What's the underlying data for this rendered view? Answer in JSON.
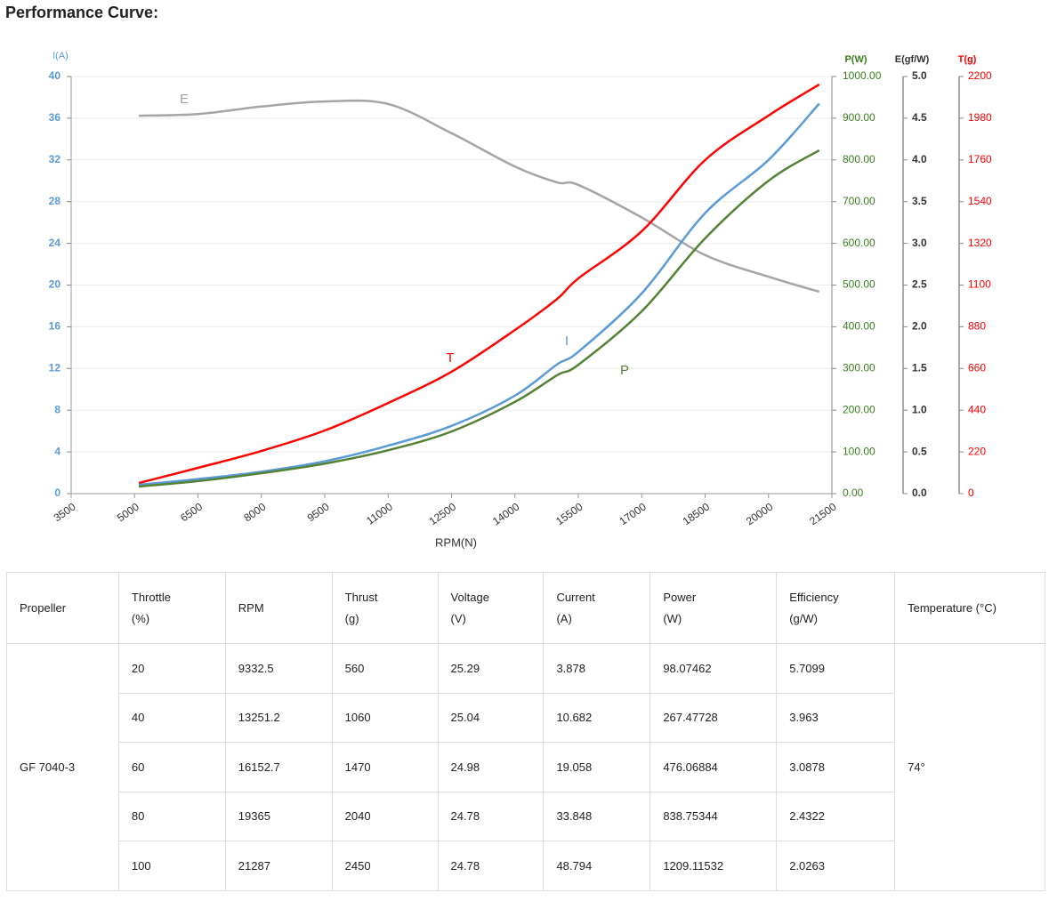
{
  "heading": "Performance Curve:",
  "chart_data": {
    "type": "line",
    "xlabel": "RPM(N)",
    "xlim": [
      3500,
      21500
    ],
    "xticks": [
      3500,
      5000,
      6500,
      8000,
      9500,
      11000,
      12500,
      14000,
      15500,
      17000,
      18500,
      20000,
      21500
    ],
    "ylabel": "I(A)",
    "ycolor": "#5b9bd5",
    "ylim": [
      0,
      40
    ],
    "yticks": [
      0,
      4,
      8,
      12,
      16,
      20,
      24,
      28,
      32,
      36,
      40
    ],
    "y2label": "P(W)",
    "y2color": "#3a7d1e",
    "y2lim": [
      0,
      1000
    ],
    "y2ticks": [
      {
        "value": 0,
        "label": "0.00"
      },
      {
        "value": 100,
        "label": "100.00"
      },
      {
        "value": 200,
        "label": "200.00"
      },
      {
        "value": 300,
        "label": "300.00"
      },
      {
        "value": 400,
        "label": "400.00"
      },
      {
        "value": 500,
        "label": "500.00"
      },
      {
        "value": 600,
        "label": "600.00"
      },
      {
        "value": 700,
        "label": "700.00"
      },
      {
        "value": 800,
        "label": "800.00"
      },
      {
        "value": 900,
        "label": "900.00"
      },
      {
        "value": 1000,
        "label": "1000.00"
      }
    ],
    "y3label": "E(gf/W)",
    "y3color": "#333333",
    "y3lim": [
      0,
      5
    ],
    "y3ticks": [
      {
        "value": 0,
        "label": "0.0"
      },
      {
        "value": 0.5,
        "label": "0.5"
      },
      {
        "value": 1,
        "label": "1.0"
      },
      {
        "value": 1.5,
        "label": "1.5"
      },
      {
        "value": 2,
        "label": "2.0"
      },
      {
        "value": 2.5,
        "label": "2.5"
      },
      {
        "value": 3,
        "label": "3.0"
      },
      {
        "value": 3.5,
        "label": "3.5"
      },
      {
        "value": 4,
        "label": "4.0"
      },
      {
        "value": 4.5,
        "label": "4.5"
      },
      {
        "value": 5,
        "label": "5.0"
      }
    ],
    "y4label": "T(g)",
    "y4color": "#ff0000",
    "y4lim": [
      0,
      2200
    ],
    "y4ticks": [
      0,
      220,
      440,
      660,
      880,
      1100,
      1320,
      1540,
      1760,
      1980,
      2200
    ],
    "grid": true,
    "x": [
      5100,
      6500,
      8000,
      9500,
      11000,
      12500,
      14000,
      15000,
      15500,
      17000,
      18500,
      20000,
      21200
    ],
    "series": [
      {
        "name": "E",
        "color": "#a5a5a5",
        "axis": "y3",
        "values": [
          4.53,
          4.55,
          4.64,
          4.7,
          4.67,
          4.32,
          3.92,
          3.73,
          3.7,
          3.31,
          2.86,
          2.6,
          2.42
        ]
      },
      {
        "name": "T",
        "color": "#ff0000",
        "axis": "y4",
        "values": [
          56,
          136,
          225,
          333,
          478,
          643,
          863,
          1027,
          1135,
          1384,
          1759,
          1994,
          2158
        ]
      },
      {
        "name": "I",
        "color": "#5b9bd5",
        "axis": "y",
        "values": [
          0.85,
          1.4,
          2.1,
          3.1,
          4.6,
          6.5,
          9.4,
          12.4,
          13.6,
          19.2,
          26.9,
          32,
          37.4
        ]
      },
      {
        "name": "P",
        "color": "#548235",
        "axis": "y2",
        "values": [
          17,
          30,
          49,
          72,
          104,
          149,
          220,
          284,
          309,
          437,
          612,
          750,
          823
        ]
      }
    ]
  },
  "table": {
    "headers": [
      [
        "Propeller"
      ],
      [
        "Throttle",
        "(%)"
      ],
      [
        "RPM"
      ],
      [
        "Thrust",
        "(g)"
      ],
      [
        "Voltage",
        "(V)"
      ],
      [
        "Current",
        "(A)"
      ],
      [
        "Power",
        "(W)"
      ],
      [
        "Efficiency",
        "(g/W)"
      ],
      [
        "Temperature (°C)"
      ]
    ],
    "propeller": "GF 7040-3",
    "temperature": "74°",
    "rows": [
      [
        "20",
        "9332.5",
        "560",
        "25.29",
        "3.878",
        "98.07462",
        "5.7099"
      ],
      [
        "40",
        "13251.2",
        "1060",
        "25.04",
        "10.682",
        "267.47728",
        "3.963"
      ],
      [
        "60",
        "16152.7",
        "1470",
        "24.98",
        "19.058",
        "476.06884",
        "3.0878"
      ],
      [
        "80",
        "19365",
        "2040",
        "24.78",
        "33.848",
        "838.75344",
        "2.4322"
      ],
      [
        "100",
        "21287",
        "2450",
        "24.78",
        "48.794",
        "1209.11532",
        "2.0263"
      ]
    ]
  }
}
